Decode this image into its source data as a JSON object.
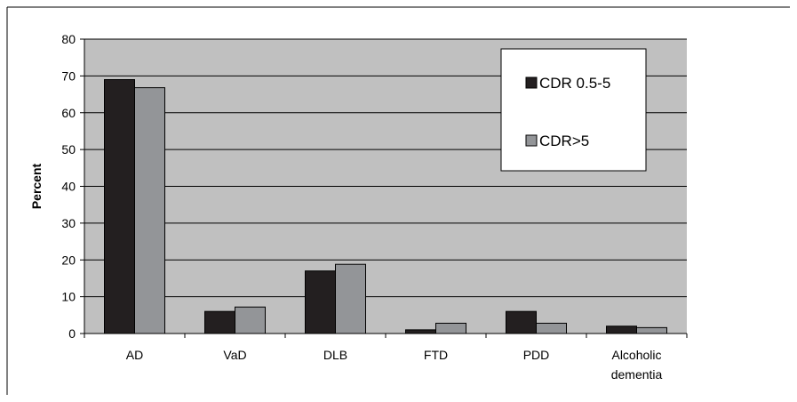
{
  "chart_data": {
    "type": "bar",
    "title": "",
    "xlabel": "",
    "ylabel": "Percent",
    "ylim": [
      0,
      80
    ],
    "yticks": [
      0,
      10,
      20,
      30,
      40,
      50,
      60,
      70,
      80
    ],
    "grid": true,
    "legend_position": "top-right",
    "categories": [
      "AD",
      "VaD",
      "DLB",
      "FTD",
      "PDD",
      "Alcoholic dementia"
    ],
    "category_lines": [
      [
        "AD"
      ],
      [
        "VaD"
      ],
      [
        "DLB"
      ],
      [
        "FTD"
      ],
      [
        "PDD"
      ],
      [
        "Alcoholic",
        "dementia"
      ]
    ],
    "series": [
      {
        "name": "CDR 0.5-5",
        "color": "#231f20",
        "values": [
          69,
          6,
          17,
          1,
          6,
          2
        ]
      },
      {
        "name": "CDR>5",
        "color": "#939598",
        "values": [
          66.8,
          7.2,
          18.8,
          2.8,
          2.8,
          1.6
        ]
      }
    ],
    "plot_background": "#c0c0c0"
  }
}
